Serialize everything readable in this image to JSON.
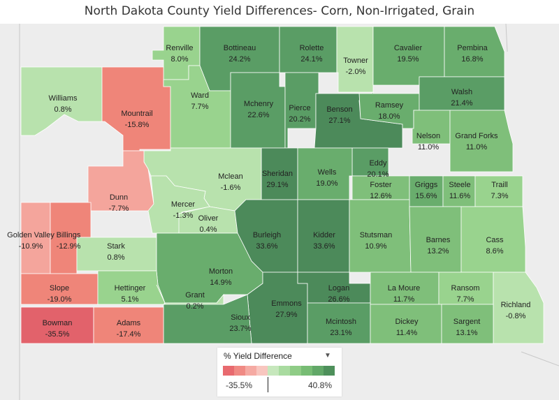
{
  "title": "North Dakota County Yield Differences- Corn, Non-Irrigated, Grain",
  "legend": {
    "title": "% Yield Difference",
    "min_label": "-35.5%",
    "max_label": "40.8%",
    "dropdown_icon": "caret-down-icon",
    "colors": [
      "#e86a6f",
      "#f08a84",
      "#f5aaa3",
      "#f8c6bf",
      "#c6e7bc",
      "#a9dba0",
      "#8fcc86",
      "#77bc74",
      "#62a868",
      "#4e905b"
    ]
  },
  "colors": {
    "neg_strong": "#e2626b",
    "neg_mid": "#ef8579",
    "neg_light": "#f4a59c",
    "pos_lightest": "#b8e2ad",
    "pos_light": "#99d38e",
    "pos_mid": "#7fbf7a",
    "pos_dark": "#69ad6d",
    "pos_darker": "#5a9d65",
    "pos_darkest": "#4c8a5a",
    "background": "#ededed"
  },
  "counties": [
    {
      "name": "Renville",
      "value": "8.0%"
    },
    {
      "name": "Bottineau",
      "value": "24.2%"
    },
    {
      "name": "Rolette",
      "value": "24.1%"
    },
    {
      "name": "Towner",
      "value": "-2.0%"
    },
    {
      "name": "Cavalier",
      "value": "19.5%"
    },
    {
      "name": "Pembina",
      "value": "16.8%"
    },
    {
      "name": "Williams",
      "value": "0.8%"
    },
    {
      "name": "Mountrail",
      "value": "-15.8%"
    },
    {
      "name": "Ward",
      "value": "7.7%"
    },
    {
      "name": "Mchenry",
      "value": "22.6%"
    },
    {
      "name": "Pierce",
      "value": "20.2%"
    },
    {
      "name": "Benson",
      "value": "27.1%"
    },
    {
      "name": "Ramsey",
      "value": "18.0%"
    },
    {
      "name": "Walsh",
      "value": "21.4%"
    },
    {
      "name": "Nelson",
      "value": "11.0%"
    },
    {
      "name": "Grand Forks",
      "value": "11.0%"
    },
    {
      "name": "Eddy",
      "value": "20.1%"
    },
    {
      "name": "Sheridan",
      "value": "29.1%"
    },
    {
      "name": "Wells",
      "value": "19.0%"
    },
    {
      "name": "Mclean",
      "value": "-1.6%"
    },
    {
      "name": "Dunn",
      "value": "-7.7%"
    },
    {
      "name": "Foster",
      "value": "12.6%"
    },
    {
      "name": "Griggs",
      "value": "15.6%"
    },
    {
      "name": "Steele",
      "value": "11.6%"
    },
    {
      "name": "Traill",
      "value": "7.3%"
    },
    {
      "name": "Mercer",
      "value": "-1.3%"
    },
    {
      "name": "Oliver",
      "value": "0.4%"
    },
    {
      "name": "Golden Valley",
      "value": "-10.9%"
    },
    {
      "name": "Billings",
      "value": "-12.9%"
    },
    {
      "name": "Burleigh",
      "value": "33.6%"
    },
    {
      "name": "Kidder",
      "value": "33.6%"
    },
    {
      "name": "Stutsman",
      "value": "10.9%"
    },
    {
      "name": "Barnes",
      "value": "13.2%"
    },
    {
      "name": "Cass",
      "value": "8.6%"
    },
    {
      "name": "Stark",
      "value": "0.8%"
    },
    {
      "name": "Morton",
      "value": "14.9%"
    },
    {
      "name": "Slope",
      "value": "-19.0%"
    },
    {
      "name": "Hettinger",
      "value": "5.1%"
    },
    {
      "name": "Grant",
      "value": "0.2%"
    },
    {
      "name": "Emmons",
      "value": "27.9%"
    },
    {
      "name": "Logan",
      "value": "26.6%"
    },
    {
      "name": "La Moure",
      "value": "11.7%"
    },
    {
      "name": "Ransom",
      "value": "7.7%"
    },
    {
      "name": "Richland",
      "value": "-0.8%"
    },
    {
      "name": "Sioux",
      "value": "23.7%"
    },
    {
      "name": "Bowman",
      "value": "-35.5%"
    },
    {
      "name": "Adams",
      "value": "-17.4%"
    },
    {
      "name": "Mcintosh",
      "value": "23.1%"
    },
    {
      "name": "Dickey",
      "value": "11.4%"
    },
    {
      "name": "Sargent",
      "value": "13.1%"
    }
  ]
}
